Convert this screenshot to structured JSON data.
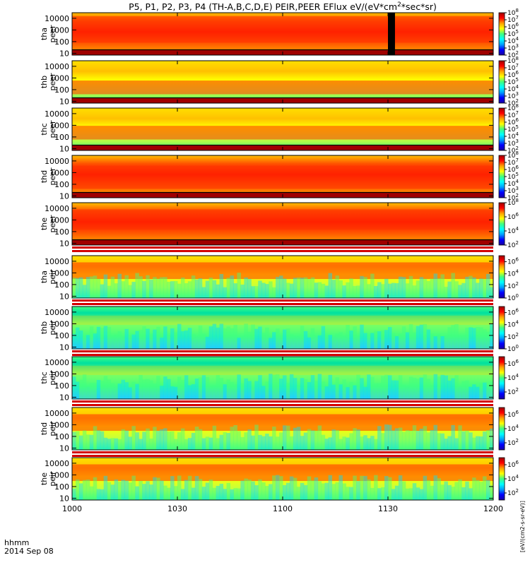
{
  "chart_data": {
    "type": "heatmap",
    "title": "P5, P1, P2, P3, P4 (TH-A,B,C,D,E) PEIR,PEER EFlux eV/(eV*cm",
    "title_sup": "2",
    "title_end": "*sec*sr)",
    "x_ticks": [
      "1000",
      "1030",
      "1100",
      "1130",
      "1200"
    ],
    "x_tick_values_min": [
      0,
      30,
      60,
      90,
      120
    ],
    "xlim_minutes": [
      0,
      120
    ],
    "x_axis_labels": [
      "hhmm",
      "2014 Sep 08"
    ],
    "y_ticks": [
      "10",
      "100",
      "1000",
      "10000"
    ],
    "y_tick_values": [
      10,
      100,
      1000,
      10000
    ],
    "ylim": [
      7,
      30000
    ],
    "y_scale": "log",
    "colorbar_label": "[eV/(cm2-s-sr-eV)]",
    "colorbar_palette": [
      "#1a00a0",
      "#0000ff",
      "#00a0ff",
      "#00ffff",
      "#40ff80",
      "#ffff00",
      "#ffa000",
      "#ff0000",
      "#a00000"
    ],
    "gap_color": "#d40000",
    "panels": [
      {
        "id": "tha-peer",
        "ylabel": [
          "tha",
          "peer"
        ],
        "cb_ticks": [
          "10",
          "10",
          "10",
          "10",
          "10",
          "10",
          "10"
        ],
        "cb_exps": [
          "8",
          "7",
          "6",
          "5",
          "4",
          "3",
          "2"
        ],
        "cb_range": [
          2,
          8
        ],
        "dominant": "red",
        "low_band": true,
        "data_gap_minutes": [
          90,
          92
        ],
        "hot_energy": [
          80,
          15000
        ]
      },
      {
        "id": "thb-peer",
        "ylabel": [
          "thb",
          "peer"
        ],
        "cb_ticks": [
          "10",
          "10",
          "10",
          "10",
          "10",
          "10",
          "10"
        ],
        "cb_exps": [
          "8",
          "7",
          "6",
          "5",
          "4",
          "3",
          "2"
        ],
        "cb_range": [
          2,
          8
        ],
        "dominant": "yellow",
        "low_band": true,
        "hot_energy": [
          40,
          600
        ]
      },
      {
        "id": "thc-peer",
        "ylabel": [
          "thc",
          "peer"
        ],
        "cb_ticks": [
          "10",
          "10",
          "10",
          "10",
          "10",
          "10",
          "10"
        ],
        "cb_exps": [
          "8",
          "7",
          "6",
          "5",
          "4",
          "3",
          "2"
        ],
        "cb_range": [
          2,
          8
        ],
        "dominant": "yellow",
        "low_band": true,
        "hot_energy": [
          60,
          900
        ]
      },
      {
        "id": "thd-peer",
        "ylabel": [
          "thd",
          "peer"
        ],
        "cb_ticks": [
          "10",
          "10",
          "10",
          "10",
          "10",
          "10",
          "10"
        ],
        "cb_exps": [
          "8",
          "7",
          "6",
          "5",
          "4",
          "3",
          "2"
        ],
        "cb_range": [
          2,
          8
        ],
        "dominant": "red",
        "low_band": true,
        "hot_energy": [
          40,
          4000
        ]
      },
      {
        "id": "the-peer",
        "ylabel": [
          "the",
          "peer"
        ],
        "cb_ticks": [
          "10",
          "10",
          "10",
          "10"
        ],
        "cb_exps": [
          "8",
          "6",
          "4",
          "2"
        ],
        "cb_range": [
          2,
          8
        ],
        "dominant": "red",
        "low_band": true,
        "hot_energy": [
          150,
          8000
        ]
      },
      {
        "id": "tha-peir",
        "ylabel": [
          "tha",
          "peir"
        ],
        "cb_ticks": [
          "10",
          "10",
          "10",
          "10"
        ],
        "cb_exps": [
          "6",
          "4",
          "2",
          "0"
        ],
        "cb_range": [
          0,
          7
        ],
        "dominant": "yellow",
        "low_band": false,
        "hot_energy": [
          300,
          8000
        ]
      },
      {
        "id": "thb-peir",
        "ylabel": [
          "thb",
          "peir"
        ],
        "cb_ticks": [
          "10",
          "10",
          "10",
          "10"
        ],
        "cb_exps": [
          "6",
          "4",
          "2",
          "0"
        ],
        "cb_range": [
          0,
          7
        ],
        "dominant": "green",
        "low_band": false,
        "hot_energy": [
          800,
          5000
        ]
      },
      {
        "id": "thc-peir",
        "ylabel": [
          "thc",
          "peir"
        ],
        "cb_ticks": [
          "10",
          "10",
          "10"
        ],
        "cb_exps": [
          "6",
          "4",
          "2"
        ],
        "cb_range": [
          1,
          7
        ],
        "dominant": "green",
        "low_band": false,
        "hot_energy": [
          800,
          5000
        ]
      },
      {
        "id": "thd-peir",
        "ylabel": [
          "thd",
          "peir"
        ],
        "cb_ticks": [
          "10",
          "10",
          "10"
        ],
        "cb_exps": [
          "6",
          "4",
          "2"
        ],
        "cb_range": [
          1,
          7
        ],
        "dominant": "yellow",
        "low_band": false,
        "hot_energy": [
          300,
          8000
        ]
      },
      {
        "id": "the-peir",
        "ylabel": [
          "the",
          "peir"
        ],
        "cb_ticks": [
          "10",
          "10",
          "10"
        ],
        "cb_exps": [
          "6",
          "4",
          "2"
        ],
        "cb_range": [
          1,
          7
        ],
        "dominant": "yellow",
        "low_band": false,
        "hot_energy": [
          300,
          8000
        ]
      }
    ]
  }
}
